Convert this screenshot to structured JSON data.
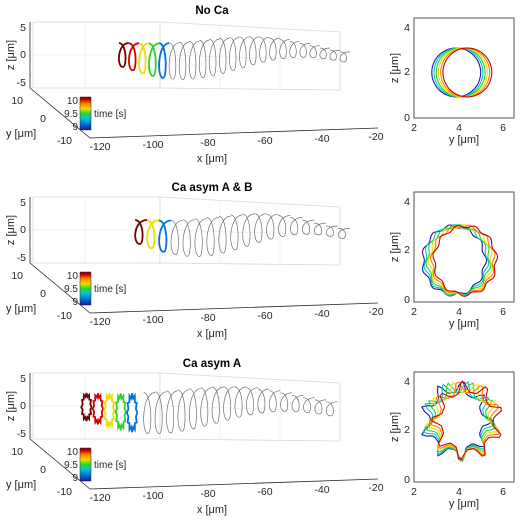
{
  "colorbar": {
    "ticks": [
      "10",
      "9.5",
      "9"
    ],
    "label": "time [s]"
  },
  "chart_data": [
    {
      "type": "line3d",
      "title": "No Ca",
      "xlabel": "x [μm]",
      "ylabel": "y [μm]",
      "zlabel": "z [μm]",
      "x_ticks": [
        "-120",
        "-100",
        "-80",
        "-60",
        "-40",
        "-20"
      ],
      "y_ticks": [
        "10",
        "0",
        "-10"
      ],
      "z_ticks": [
        "5",
        "0",
        "-5"
      ],
      "xlim": [
        -125,
        -20
      ],
      "colored_time_range": [
        9,
        10
      ],
      "colormap": [
        "#1a1aa0",
        "#0070e0",
        "#00c8c8",
        "#30d030",
        "#e8e000",
        "#ff8000",
        "#d00000",
        "#700000"
      ],
      "trajectory_color": "#6e6e6e",
      "helix_x_start": -113,
      "helix_x_end": -24,
      "helix_turns": 23,
      "colored_turns": 5,
      "variant": "plain"
    },
    {
      "type": "line",
      "xlabel": "y [μm]",
      "ylabel": "z [μm]",
      "x_ticks": [
        "2",
        "4",
        "6"
      ],
      "y_ticks": [
        "4",
        "2",
        "0"
      ],
      "xlim": [
        2,
        6.5
      ],
      "ylim": [
        0,
        4.5
      ],
      "series": [
        {
          "values_cx_cy_r": [
            3.9,
            2.05,
            1.1
          ],
          "color": "#1a1aa0"
        },
        {
          "values_cx_cy_r": [
            4.0,
            2.05,
            1.1
          ],
          "color": "#00c8c8"
        },
        {
          "values_cx_cy_r": [
            4.1,
            2.05,
            1.1
          ],
          "color": "#30d030"
        },
        {
          "values_cx_cy_r": [
            4.2,
            2.05,
            1.1
          ],
          "color": "#e8e000"
        },
        {
          "values_cx_cy_r": [
            4.3,
            2.05,
            1.1
          ],
          "color": "#ff8000"
        },
        {
          "values_cx_cy_r": [
            4.4,
            2.05,
            1.1
          ],
          "color": "#d00000"
        }
      ]
    },
    {
      "type": "line3d",
      "title": "Ca asym A & B",
      "xlabel": "x [μm]",
      "ylabel": "y [μm]",
      "zlabel": "z [μm]",
      "x_ticks": [
        "-120",
        "-100",
        "-80",
        "-60",
        "-40",
        "-20"
      ],
      "y_ticks": [
        "10",
        "0",
        "-10"
      ],
      "z_ticks": [
        "5",
        "0",
        "-5"
      ],
      "xlim": [
        -125,
        -20
      ],
      "colored_time_range": [
        9,
        10
      ],
      "helix_x_start": -107,
      "helix_x_end": -20,
      "helix_turns": 18,
      "colored_turns": 3,
      "variant": "plain"
    },
    {
      "type": "line",
      "xlabel": "y [μm]",
      "ylabel": "z [μm]",
      "x_ticks": [
        "2",
        "4",
        "6"
      ],
      "y_ticks": [
        "4",
        "2",
        "0"
      ],
      "xlim": [
        2,
        6.5
      ],
      "ylim": [
        0,
        4.5
      ],
      "series": [
        {
          "values_cx_cy_r": [
            3.8,
            1.7,
            1.4
          ],
          "color": "#1a1aa0"
        },
        {
          "values_cx_cy_r": [
            3.9,
            1.7,
            1.4
          ],
          "color": "#00c8c8"
        },
        {
          "values_cx_cy_r": [
            4.0,
            1.7,
            1.4
          ],
          "color": "#30d030"
        },
        {
          "values_cx_cy_r": [
            4.1,
            1.7,
            1.4
          ],
          "color": "#e8e000"
        },
        {
          "values_cx_cy_r": [
            4.2,
            1.7,
            1.4
          ],
          "color": "#ff8000"
        },
        {
          "values_cx_cy_r": [
            4.3,
            1.7,
            1.4
          ],
          "color": "#d00000"
        }
      ],
      "variant": "polygon"
    },
    {
      "type": "line3d",
      "title": "Ca asym A",
      "xlabel": "x [μm]",
      "ylabel": "y [μm]",
      "zlabel": "z [μm]",
      "x_ticks": [
        "-120",
        "-100",
        "-80",
        "-60",
        "-40",
        "-20"
      ],
      "y_ticks": [
        "10",
        "0",
        "-10"
      ],
      "z_ticks": [
        "5",
        "0",
        "-5"
      ],
      "xlim": [
        -125,
        -20
      ],
      "colored_time_range": [
        9,
        10
      ],
      "helix_x_start": -125,
      "helix_x_end": -32,
      "helix_turns": 22,
      "colored_turns": 5,
      "variant": "jagged"
    },
    {
      "type": "line",
      "xlabel": "y [μm]",
      "ylabel": "z [μm]",
      "x_ticks": [
        "2",
        "4",
        "6"
      ],
      "y_ticks": [
        "4",
        "2",
        "0"
      ],
      "xlim": [
        2,
        6.5
      ],
      "ylim": [
        0,
        4.5
      ],
      "series": [
        {
          "values_cx_cy_r": [
            3.9,
            2.5,
            1.5
          ],
          "color": "#1a1aa0"
        },
        {
          "values_cx_cy_r": [
            4.0,
            2.5,
            1.5
          ],
          "color": "#00c8c8"
        },
        {
          "values_cx_cy_r": [
            4.1,
            2.5,
            1.5
          ],
          "color": "#30d030"
        },
        {
          "values_cx_cy_r": [
            4.2,
            2.5,
            1.5
          ],
          "color": "#e8e000"
        },
        {
          "values_cx_cy_r": [
            4.3,
            2.5,
            1.5
          ],
          "color": "#ff8000"
        },
        {
          "values_cx_cy_r": [
            4.4,
            2.5,
            1.5
          ],
          "color": "#d00000"
        }
      ],
      "variant": "star"
    }
  ]
}
